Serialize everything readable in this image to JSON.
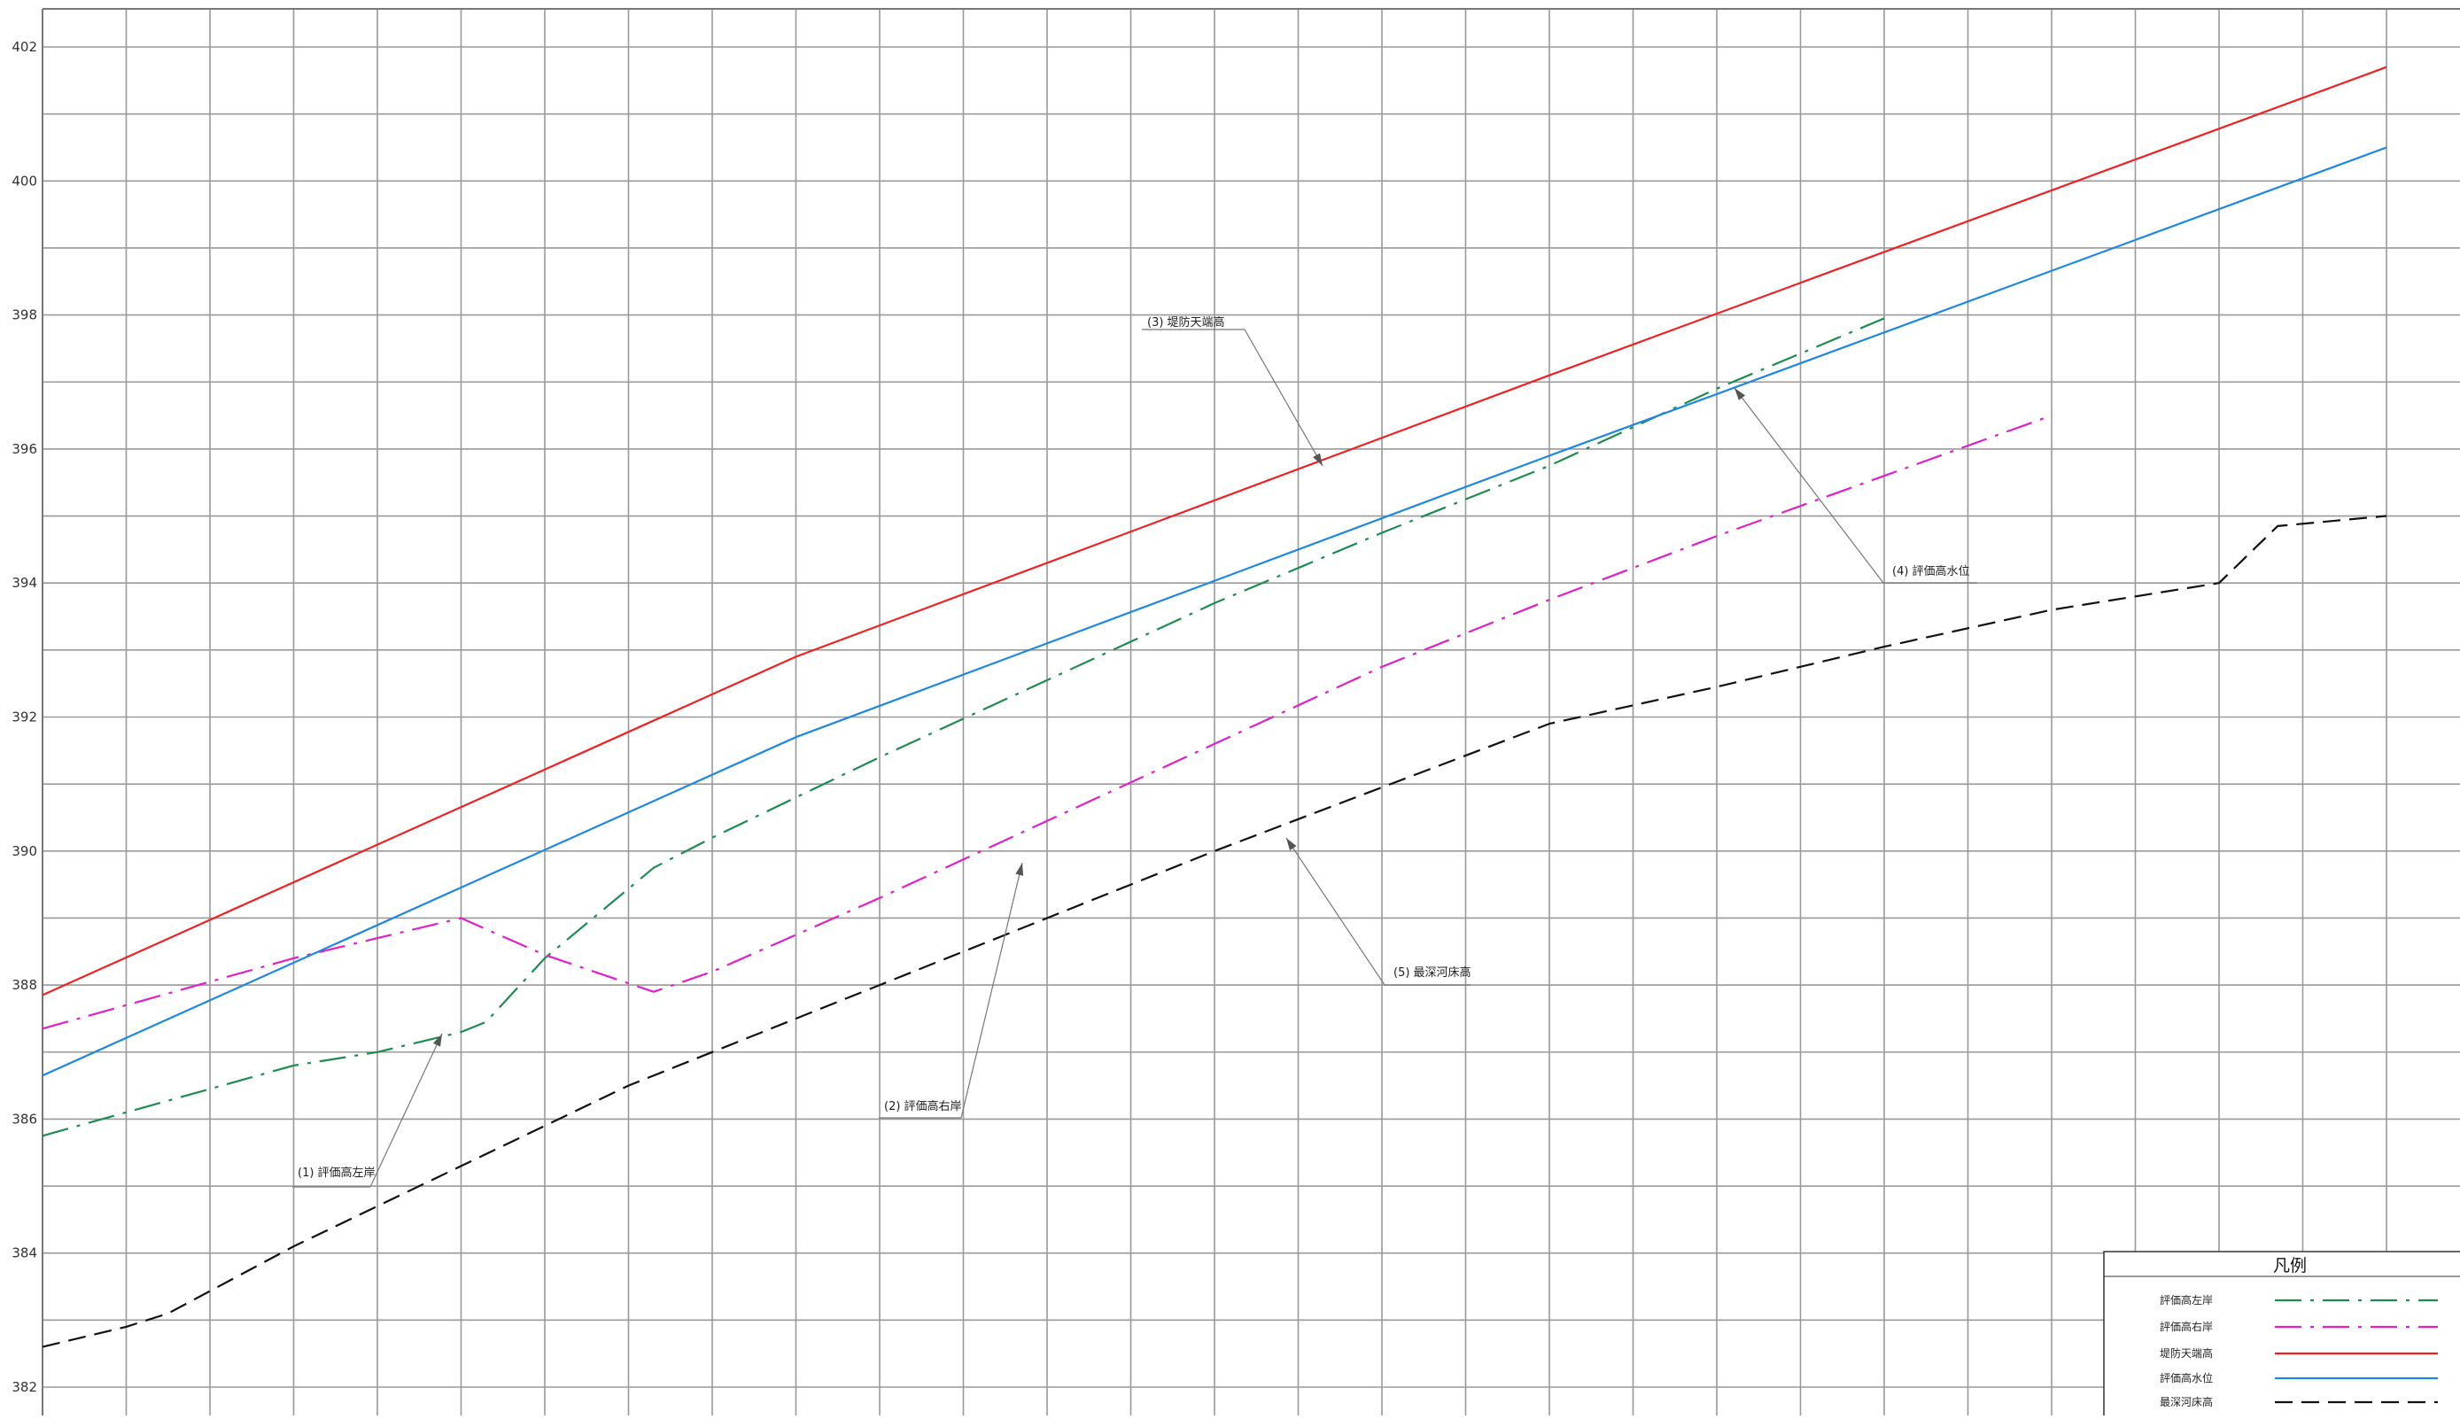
{
  "chart_data": {
    "type": "line",
    "title": "",
    "xlabel": "",
    "ylabel": "",
    "ylim": [
      382,
      402
    ],
    "y_ticks": [
      382,
      384,
      386,
      388,
      390,
      392,
      394,
      396,
      398,
      400,
      402
    ],
    "x_range": [
      0,
      28
    ],
    "grid": true,
    "legend_placement": "bottom-right",
    "legend_title": "凡例",
    "series": [
      {
        "name": "評価高左岸",
        "callout": "(1) 評価高左岸",
        "color": "#1e8c50",
        "dash": "dashdot",
        "points": [
          [
            0,
            385.75
          ],
          [
            1,
            386.1
          ],
          [
            2,
            386.45
          ],
          [
            3,
            386.8
          ],
          [
            4,
            387.0
          ],
          [
            5,
            387.3
          ],
          [
            5.3,
            387.45
          ],
          [
            6,
            388.4
          ],
          [
            7.3,
            389.75
          ],
          [
            8,
            390.2
          ],
          [
            10,
            391.4
          ],
          [
            12,
            392.55
          ],
          [
            14,
            393.7
          ],
          [
            16,
            394.75
          ],
          [
            18,
            395.75
          ],
          [
            20,
            396.9
          ],
          [
            22,
            397.95
          ]
        ]
      },
      {
        "name": "評価高右岸",
        "callout": "(2) 評価高右岸",
        "color": "#e020c8",
        "dash": "dashdot",
        "points": [
          [
            0,
            387.35
          ],
          [
            1,
            387.7
          ],
          [
            2,
            388.05
          ],
          [
            3,
            388.4
          ],
          [
            4,
            388.7
          ],
          [
            5,
            389.0
          ],
          [
            6,
            388.45
          ],
          [
            7.3,
            387.9
          ],
          [
            8,
            388.2
          ],
          [
            10,
            389.3
          ],
          [
            12,
            390.45
          ],
          [
            14,
            391.6
          ],
          [
            16,
            392.75
          ],
          [
            18,
            393.75
          ],
          [
            20,
            394.7
          ],
          [
            22,
            395.6
          ],
          [
            24,
            396.5
          ]
        ]
      },
      {
        "name": "堤防天端高",
        "callout": "(3) 堤防天端高",
        "color": "#ee2222",
        "dash": "solid",
        "points": [
          [
            0,
            387.85
          ],
          [
            9,
            392.9
          ],
          [
            18,
            397.1
          ],
          [
            28,
            401.7
          ]
        ]
      },
      {
        "name": "評価高水位",
        "callout": "(4) 評価高水位",
        "color": "#1e88e0",
        "dash": "solid",
        "points": [
          [
            0,
            386.65
          ],
          [
            9,
            391.7
          ],
          [
            18,
            395.9
          ],
          [
            28,
            400.5
          ]
        ]
      },
      {
        "name": "最深河床高",
        "callout": "(5) 最深河床高",
        "color": "#111111",
        "dash": "dashed",
        "points": [
          [
            0,
            382.6
          ],
          [
            1,
            382.9
          ],
          [
            1.5,
            383.1
          ],
          [
            3,
            384.1
          ],
          [
            5,
            385.3
          ],
          [
            7,
            386.5
          ],
          [
            8,
            387.0
          ],
          [
            10,
            388.0
          ],
          [
            12,
            389.0
          ],
          [
            14,
            390.0
          ],
          [
            16,
            390.95
          ],
          [
            18,
            391.9
          ],
          [
            20,
            392.45
          ],
          [
            22,
            393.05
          ],
          [
            24,
            393.6
          ],
          [
            26,
            394.0
          ],
          [
            26.7,
            394.85
          ],
          [
            28,
            395.0
          ]
        ]
      }
    ]
  }
}
